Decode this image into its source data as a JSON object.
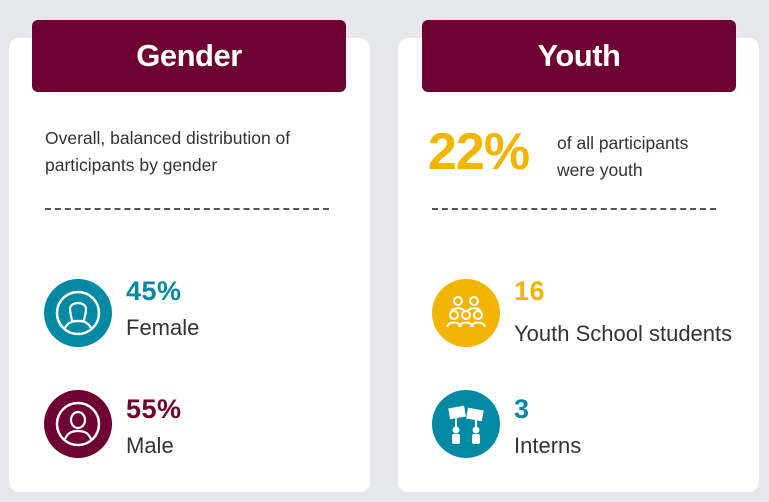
{
  "gender": {
    "title": "Gender",
    "intro": "Overall, balanced distribution of participants by gender",
    "stats": [
      {
        "value": "45%",
        "label": "Female",
        "icon": "female-avatar-icon",
        "color": "#0089a3"
      },
      {
        "value": "55%",
        "label": "Male",
        "icon": "male-avatar-icon",
        "color": "#6e0032"
      }
    ]
  },
  "youth": {
    "title": "Youth",
    "percent": "22%",
    "percent_note": "of all participants were youth",
    "stats": [
      {
        "value": "16",
        "label": "Youth School students",
        "icon": "group-icon",
        "color": "#f1b400"
      },
      {
        "value": "3",
        "label": "Interns",
        "icon": "protest-signs-icon",
        "color": "#0089a3"
      }
    ]
  },
  "colors": {
    "maroon": "#6e0032",
    "teal": "#0089a3",
    "gold": "#f1b400",
    "background": "#e6e7ec"
  }
}
